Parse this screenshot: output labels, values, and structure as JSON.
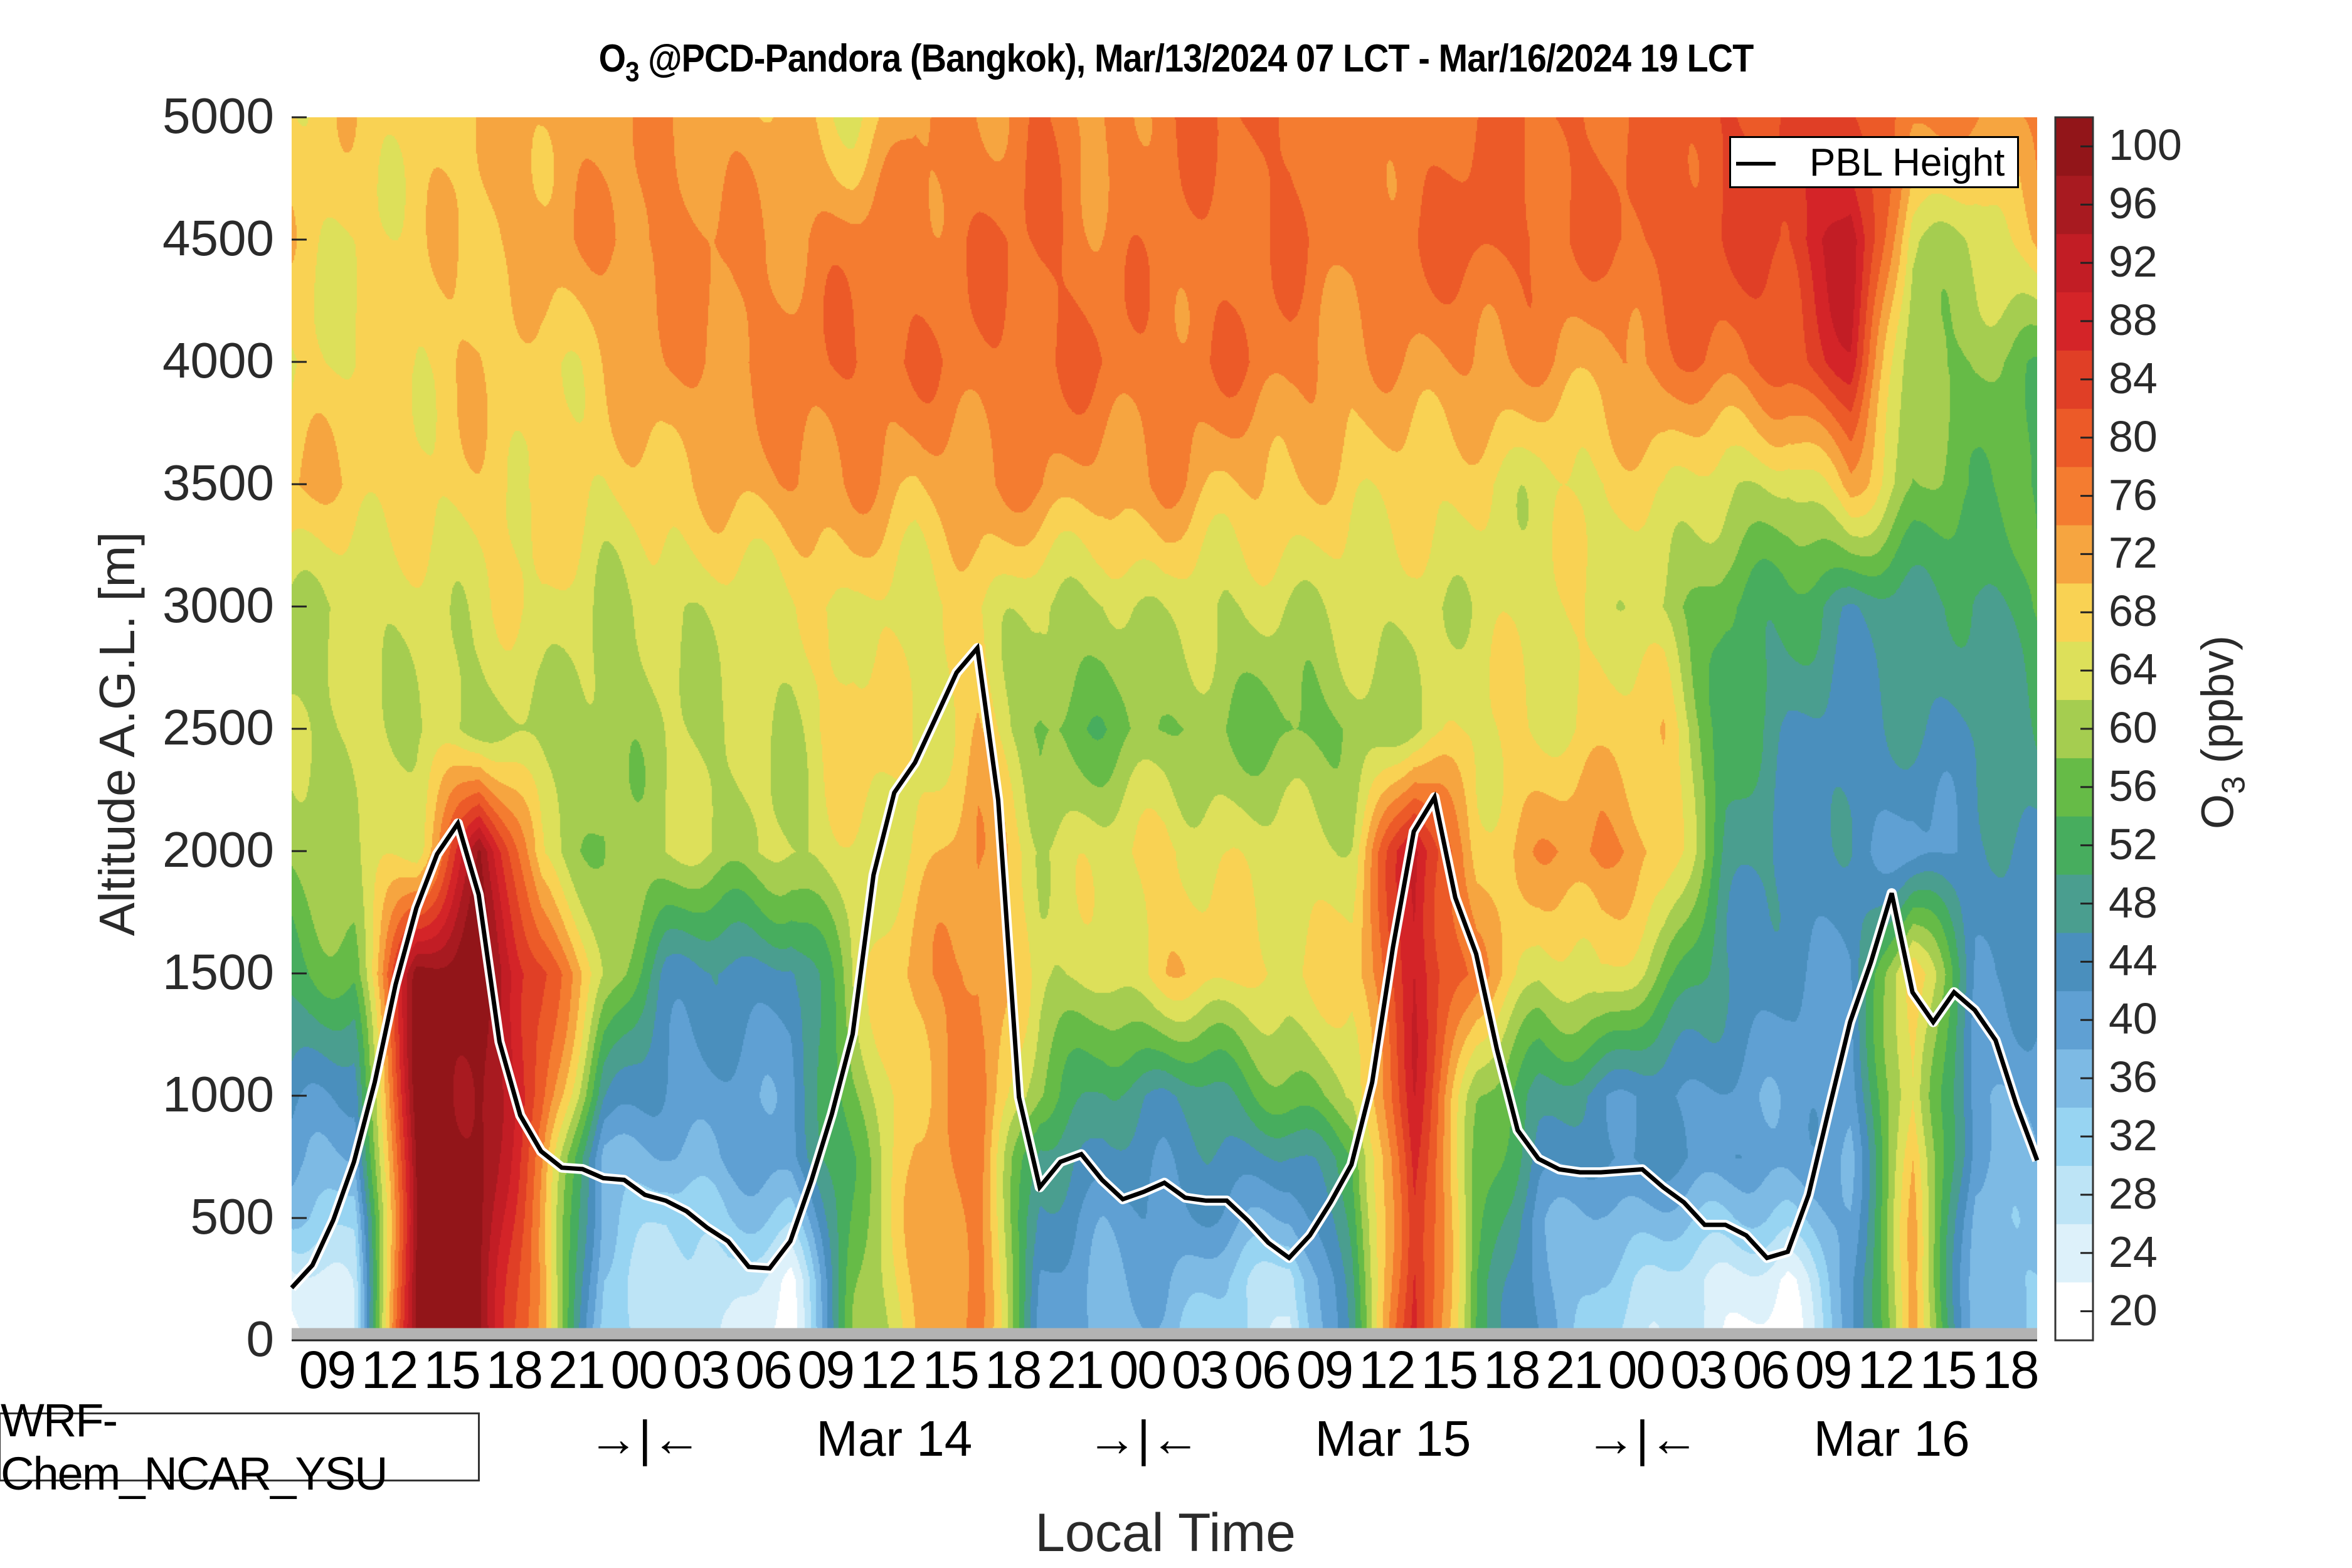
{
  "title": {
    "species": "O",
    "species_sub": "3",
    "rest": " @PCD-Pandora (Bangkok), Mar/13/2024 07 LCT - Mar/16/2024 19 LCT"
  },
  "watermark": "WRF-Chem_NCAR_YSU",
  "legend": {
    "label": "PBL Height",
    "line_color": "#000000"
  },
  "colorbar": {
    "label_species": "O",
    "label_sub": "3",
    "label_rest": " (ppbv)",
    "levels": [
      20,
      24,
      28,
      32,
      36,
      40,
      44,
      48,
      52,
      56,
      60,
      64,
      68,
      72,
      76,
      80,
      84,
      88,
      92,
      96,
      100
    ],
    "colors": [
      "#ffffff",
      "#ddf1fa",
      "#bde4f6",
      "#97d4f2",
      "#7dbae4",
      "#5fa0d3",
      "#4a8fbd",
      "#4a9e8f",
      "#47ad5e",
      "#66bb47",
      "#a5cd50",
      "#dde05a",
      "#f9d253",
      "#f6a540",
      "#f47c30",
      "#ec5a28",
      "#e03f26",
      "#d42428",
      "#c21d25",
      "#a81a20",
      "#921519"
    ],
    "tick_labels": [
      "20",
      "24",
      "28",
      "32",
      "36",
      "40",
      "44",
      "48",
      "52",
      "56",
      "60",
      "64",
      "68",
      "72",
      "76",
      "80",
      "84",
      "88",
      "92",
      "96",
      "100"
    ]
  },
  "chart_data": {
    "type": "heatmap",
    "title": "O3 @PCD-Pandora (Bangkok), Mar/13/2024 07 LCT - Mar/16/2024 19 LCT",
    "xlabel": "Local Time",
    "ylabel": "Altitude A.G.L. [m]",
    "zlabel": "O3 (ppbv)",
    "xlim_hours_since_start": [
      0,
      84
    ],
    "start_time": "Mar/13/2024 07 LCT",
    "end_time": "Mar/16/2024 19 LCT",
    "ylim": [
      0,
      5000
    ],
    "zlim": [
      18,
      102
    ],
    "ground_mask_below_m": 50,
    "legend_position": "top-right",
    "grid": false,
    "y_ticks": [
      0,
      500,
      1000,
      1500,
      2000,
      2500,
      3000,
      3500,
      4000,
      4500,
      5000
    ],
    "y_tick_labels": [
      "0",
      "500",
      "1000",
      "1500",
      "2000",
      "2500",
      "3000",
      "3500",
      "4000",
      "4500",
      "5000"
    ],
    "x_tick_hours": [
      2,
      5,
      8,
      11,
      14,
      17,
      20,
      23,
      26,
      29,
      32,
      35,
      38,
      41,
      44,
      47,
      50,
      53,
      56,
      59,
      62,
      65,
      68,
      71,
      74,
      77,
      80,
      83
    ],
    "x_tick_labels": [
      "09",
      "12",
      "15",
      "18",
      "21",
      "00",
      "03",
      "06",
      "09",
      "12",
      "15",
      "18",
      "21",
      "00",
      "03",
      "06",
      "09",
      "12",
      "15",
      "18",
      "21",
      "00",
      "03",
      "06",
      "09",
      "12",
      "15",
      "18"
    ],
    "day_markers": [
      {
        "hour": 17,
        "label": "→|←"
      },
      {
        "hour": 29,
        "label": "Mar 14"
      },
      {
        "hour": 41,
        "label": "→|←"
      },
      {
        "hour": 53,
        "label": "Mar 15"
      },
      {
        "hour": 65,
        "label": "→|←"
      },
      {
        "hour": 77,
        "label": "Mar 16"
      }
    ],
    "field": {
      "x_hours": [
        0,
        3,
        6,
        9,
        12,
        15,
        18,
        21,
        24,
        27,
        30,
        33,
        36,
        39,
        42,
        45,
        48,
        51,
        54,
        57,
        60,
        63,
        66,
        69,
        72,
        75,
        78,
        81,
        84
      ],
      "y_altitudes_m": [
        5000,
        4500,
        4000,
        3500,
        3000,
        2500,
        2000,
        1500,
        1000,
        750,
        500,
        250,
        50
      ],
      "z_ppbv": [
        [
          68,
          68,
          68,
          70,
          72,
          72,
          74,
          72,
          70,
          66,
          74,
          74,
          78,
          72,
          78,
          78,
          78,
          74,
          76,
          78,
          78,
          78,
          78,
          82,
          82,
          84,
          76,
          74,
          74
        ],
        [
          68,
          66,
          68,
          70,
          72,
          74,
          76,
          74,
          74,
          76,
          76,
          78,
          78,
          76,
          76,
          76,
          78,
          76,
          78,
          80,
          78,
          78,
          80,
          82,
          84,
          94,
          62,
          62,
          70
        ],
        [
          66,
          66,
          68,
          70,
          66,
          70,
          74,
          74,
          76,
          78,
          78,
          76,
          78,
          78,
          76,
          78,
          76,
          72,
          74,
          74,
          74,
          72,
          76,
          78,
          80,
          88,
          58,
          58,
          56
        ],
        [
          70,
          70,
          66,
          68,
          68,
          66,
          70,
          70,
          74,
          74,
          70,
          74,
          74,
          72,
          74,
          70,
          70,
          68,
          68,
          66,
          64,
          66,
          68,
          62,
          62,
          72,
          58,
          56,
          52
        ],
        [
          62,
          62,
          64,
          64,
          66,
          62,
          62,
          64,
          64,
          66,
          64,
          66,
          62,
          60,
          64,
          62,
          62,
          64,
          62,
          64,
          64,
          66,
          60,
          54,
          52,
          46,
          50,
          48,
          54
        ],
        [
          60,
          64,
          62,
          60,
          62,
          58,
          62,
          62,
          62,
          70,
          64,
          70,
          56,
          56,
          58,
          58,
          56,
          58,
          62,
          66,
          66,
          66,
          70,
          52,
          46,
          44,
          46,
          46,
          50
        ],
        [
          60,
          62,
          64,
          99,
          64,
          58,
          62,
          62,
          62,
          64,
          66,
          74,
          64,
          64,
          68,
          64,
          64,
          64,
          92,
          68,
          72,
          76,
          70,
          50,
          44,
          44,
          40,
          44,
          46
        ],
        [
          52,
          56,
          100,
          100,
          84,
          62,
          46,
          44,
          44,
          62,
          72,
          76,
          62,
          64,
          68,
          68,
          66,
          68,
          90,
          74,
          64,
          66,
          58,
          46,
          42,
          42,
          70,
          44,
          42
        ],
        [
          44,
          42,
          100,
          100,
          80,
          48,
          40,
          40,
          40,
          58,
          70,
          76,
          58,
          48,
          46,
          50,
          56,
          62,
          88,
          60,
          48,
          44,
          42,
          40,
          40,
          40,
          68,
          38,
          38
        ],
        [
          40,
          36,
          100,
          100,
          76,
          36,
          36,
          40,
          40,
          56,
          70,
          76,
          48,
          44,
          44,
          44,
          46,
          52,
          88,
          58,
          44,
          44,
          42,
          42,
          40,
          38,
          70,
          38,
          38
        ],
        [
          34,
          30,
          100,
          100,
          74,
          34,
          30,
          34,
          32,
          56,
          70,
          76,
          44,
          40,
          42,
          40,
          38,
          50,
          88,
          56,
          40,
          36,
          36,
          34,
          32,
          40,
          70,
          36,
          36
        ],
        [
          22,
          28,
          100,
          100,
          72,
          32,
          28,
          28,
          22,
          56,
          70,
          76,
          42,
          38,
          38,
          34,
          26,
          50,
          88,
          54,
          40,
          32,
          30,
          24,
          22,
          40,
          70,
          36,
          34
        ],
        [
          20,
          28,
          100,
          100,
          70,
          32,
          28,
          26,
          20,
          56,
          70,
          76,
          42,
          36,
          36,
          32,
          24,
          50,
          88,
          54,
          40,
          30,
          28,
          22,
          20,
          38,
          72,
          36,
          34
        ]
      ]
    },
    "series": [
      {
        "name": "PBL Height",
        "x_hours": [
          0,
          1,
          2,
          3,
          4,
          5,
          6,
          7,
          8,
          9,
          10,
          11,
          12,
          13,
          14,
          15,
          16,
          17,
          18,
          19,
          20,
          21,
          22,
          23,
          24,
          25,
          26,
          27,
          28,
          29,
          30,
          31,
          32,
          33,
          34,
          35,
          36,
          37,
          38,
          39,
          40,
          41,
          42,
          43,
          44,
          45,
          46,
          47,
          48,
          49,
          50,
          51,
          52,
          53,
          54,
          55,
          56,
          57,
          58,
          59,
          60,
          61,
          62,
          63,
          64,
          65,
          66,
          67,
          68,
          69,
          70,
          71,
          72,
          73,
          74,
          75,
          76,
          77,
          78,
          79,
          80,
          81,
          82,
          83,
          84
        ],
        "values_m": [
          215,
          307,
          491,
          730,
          1055,
          1454,
          1767,
          1988,
          2113,
          1822,
          1221,
          920,
          773,
          706,
          700,
          663,
          656,
          595,
          571,
          528,
          460,
          405,
          300,
          294,
          405,
          650,
          926,
          1252,
          1902,
          2239,
          2362,
          2546,
          2730,
          2830,
          2209,
          994,
          626,
          730,
          761,
          656,
          577,
          607,
          644,
          583,
          571,
          571,
          491,
          399,
          337,
          429,
          564,
          718,
          1055,
          1607,
          2080,
          2220,
          1810,
          1580,
          1190,
          859,
          742,
          699,
          687,
          687,
          693,
          699,
          626,
          564,
          472,
          472,
          429,
          337,
          362,
          595,
          951,
          1301,
          1546,
          1828,
          1423,
          1301,
          1423,
          1350,
          1227,
          963,
          736
        ]
      }
    ]
  }
}
